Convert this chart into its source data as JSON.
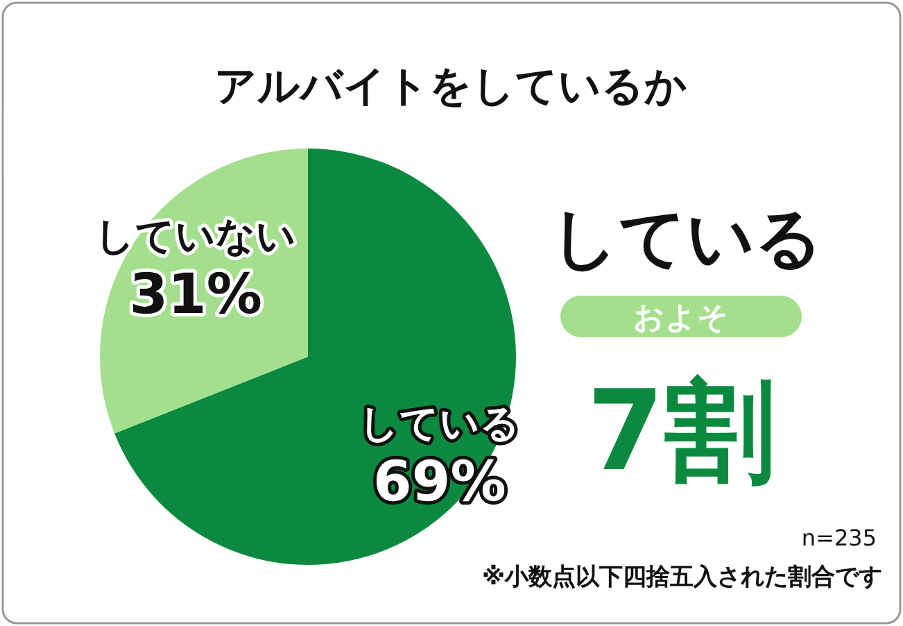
{
  "chart_data": {
    "type": "pie",
    "title": "アルバイトをしているか",
    "categories": [
      "している",
      "していない"
    ],
    "values": [
      69,
      31
    ],
    "colors": [
      "#0b8a3f",
      "#a3df8c"
    ],
    "value_labels": [
      "69%",
      "31%"
    ],
    "annotations": [
      "している",
      "およそ",
      "7割",
      "n=235",
      "※小数点以下四捨五入された割合です"
    ]
  }
}
